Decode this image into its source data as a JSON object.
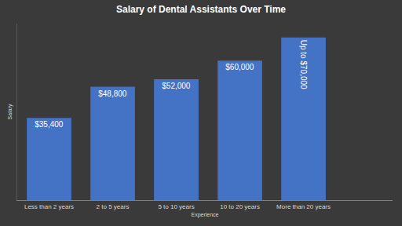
{
  "chart_data": {
    "type": "bar",
    "title": "Salary of Dental Assistants Over Time",
    "xlabel": "Experience",
    "ylabel": "Salary",
    "categories": [
      "Less than 2 years",
      "2 to 5 years",
      "5 to 10 years",
      "10 to 20 years",
      "More than 20 years"
    ],
    "values": [
      35400,
      48800,
      52000,
      60000,
      70000
    ],
    "value_labels": [
      "$35,400",
      "$48,800",
      "$52,000",
      "$60,000",
      "Up to $70,000"
    ],
    "color": "#4472c4",
    "ylim": [
      0,
      76000
    ],
    "grid": false,
    "data_labels": true,
    "tick_labels": "x"
  }
}
